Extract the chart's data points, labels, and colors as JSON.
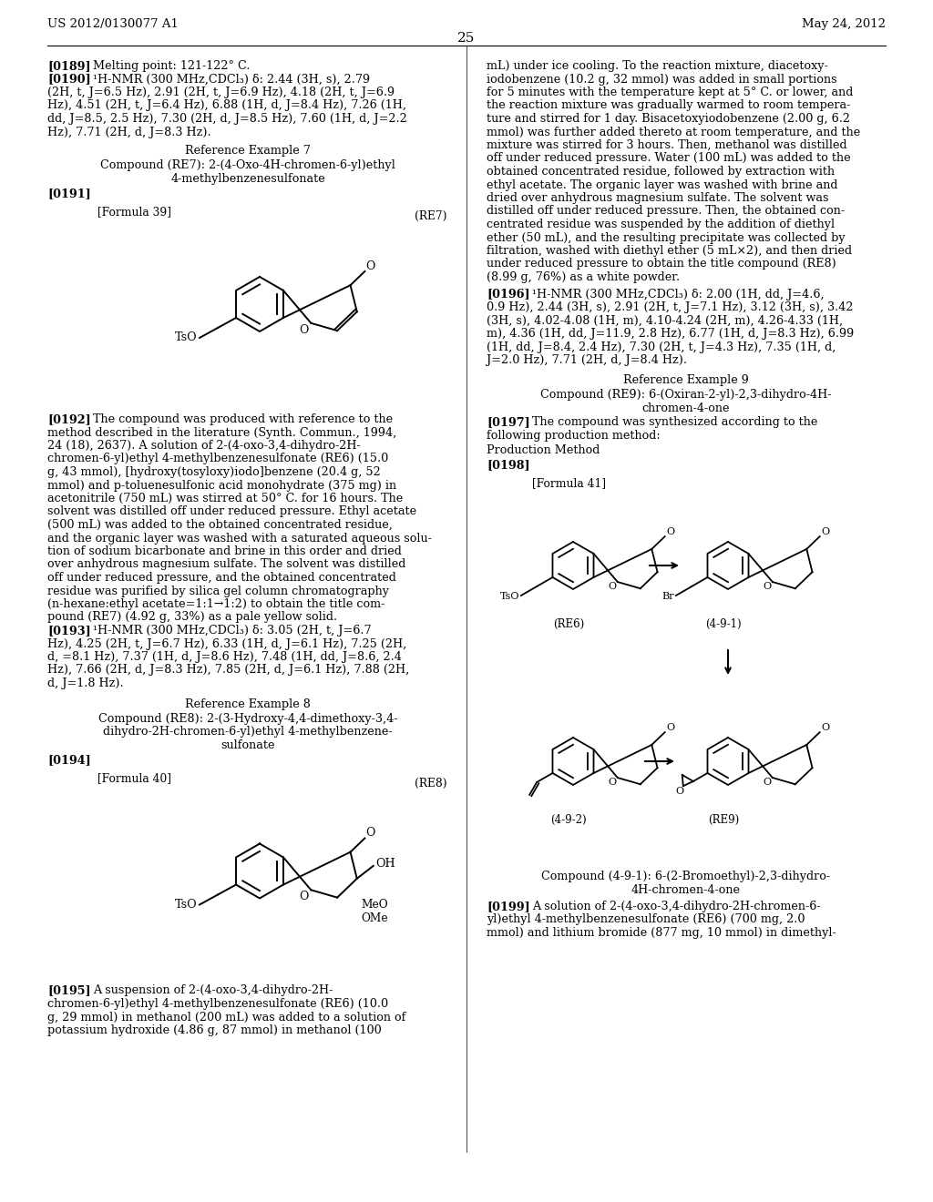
{
  "page_number": "25",
  "header_left": "US 2012/0130077 A1",
  "header_right": "May 24, 2012",
  "background_color": "#ffffff"
}
